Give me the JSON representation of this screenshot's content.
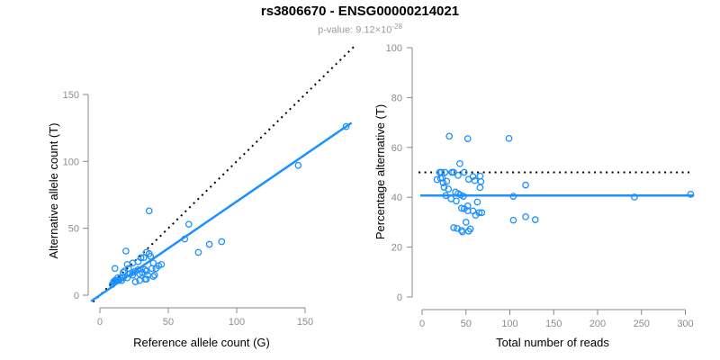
{
  "figure": {
    "title": "rs3806670 - ENSG00000214021",
    "p_value_label": "p-value: 9.12×10",
    "p_value_exponent": "-28"
  },
  "colors": {
    "accent": "#1E90FF",
    "axis": "#888888",
    "tick_label": "#8c8c8c",
    "title": "#000000",
    "subtitle": "#9c9c9c",
    "dotted_line": "#000000"
  },
  "chart_data": [
    {
      "type": "scatter",
      "name": "allele-counts-scatter",
      "xlabel": "Reference allele count (G)",
      "ylabel": "Alternative allele count (T)",
      "xticks": [
        0,
        50,
        100,
        150
      ],
      "yticks": [
        0,
        50,
        100,
        150
      ],
      "xlim": [
        -7,
        187
      ],
      "ylim": [
        -6,
        187
      ],
      "grid": false,
      "legend": "none",
      "marker": "open-circle",
      "lines": [
        {
          "name": "identity-line",
          "style": "dotted",
          "color": "#000000",
          "x1": -5,
          "y1": -5,
          "x2": 186,
          "y2": 186
        },
        {
          "name": "regression-line",
          "style": "solid",
          "color": "#1E90FF",
          "x1": -6.5,
          "y1": -4.55,
          "x2": 184,
          "y2": 128.8
        }
      ],
      "points": [
        [
          180,
          126
        ],
        [
          145,
          97
        ],
        [
          36,
          63
        ],
        [
          19,
          33
        ],
        [
          11,
          20
        ],
        [
          65,
          53
        ],
        [
          62,
          42
        ],
        [
          89,
          40
        ],
        [
          80,
          38
        ],
        [
          72,
          32
        ],
        [
          34,
          32
        ],
        [
          36,
          31
        ],
        [
          30,
          28
        ],
        [
          32,
          28
        ],
        [
          37,
          29
        ],
        [
          28,
          25
        ],
        [
          24,
          24
        ],
        [
          20,
          23
        ],
        [
          21,
          20
        ],
        [
          39,
          24
        ],
        [
          43,
          22
        ],
        [
          45,
          23
        ],
        [
          41,
          20
        ],
        [
          38,
          20
        ],
        [
          33,
          19
        ],
        [
          34,
          18
        ],
        [
          31,
          17
        ],
        [
          26,
          18
        ],
        [
          28,
          19
        ],
        [
          24,
          17
        ],
        [
          22,
          16
        ],
        [
          29,
          16
        ],
        [
          24,
          15
        ],
        [
          35,
          15
        ],
        [
          40,
          15
        ],
        [
          39,
          14
        ],
        [
          20,
          13
        ],
        [
          17,
          13
        ],
        [
          15,
          13
        ],
        [
          16,
          11
        ],
        [
          14,
          11
        ],
        [
          13,
          11
        ],
        [
          12,
          11
        ],
        [
          11,
          10
        ],
        [
          10,
          10
        ],
        [
          11,
          11
        ],
        [
          13,
          13
        ],
        [
          17,
          17
        ],
        [
          18,
          18
        ],
        [
          26,
          10
        ],
        [
          29,
          11
        ],
        [
          33,
          12
        ],
        [
          34,
          12
        ],
        [
          9,
          8
        ]
      ]
    },
    {
      "type": "scatter",
      "name": "percentage-vs-reads-scatter",
      "xlabel": "Total number of reads",
      "ylabel": "Percentage alternative (T)",
      "xticks": [
        0,
        50,
        100,
        150,
        200,
        250,
        300
      ],
      "yticks": [
        0,
        20,
        40,
        60,
        80,
        100
      ],
      "xlim": [
        -12,
        316
      ],
      "ylim": [
        0,
        100
      ],
      "grid": false,
      "legend": "none",
      "marker": "open-circle",
      "lines": [
        {
          "name": "fifty-percent-line",
          "style": "dotted",
          "color": "#000000",
          "x1": -4,
          "y1": 50,
          "x2": 307,
          "y2": 50
        },
        {
          "name": "mean-percentage-line",
          "style": "solid",
          "color": "#1E90FF",
          "x1": -2,
          "y1": 40.7,
          "x2": 310,
          "y2": 40.7
        }
      ],
      "points": [
        [
          306,
          41.2
        ],
        [
          242,
          40.1
        ],
        [
          99,
          63.6
        ],
        [
          52,
          63.5
        ],
        [
          31,
          64.5
        ],
        [
          118,
          44.9
        ],
        [
          104,
          40.4
        ],
        [
          129,
          31.0
        ],
        [
          118,
          32.2
        ],
        [
          104,
          30.8
        ],
        [
          66,
          48.5
        ],
        [
          67,
          46.3
        ],
        [
          58,
          48.3
        ],
        [
          60,
          46.7
        ],
        [
          66,
          43.9
        ],
        [
          53,
          47.2
        ],
        [
          48,
          50.0
        ],
        [
          43,
          53.5
        ],
        [
          41,
          48.8
        ],
        [
          63,
          38.1
        ],
        [
          65,
          33.8
        ],
        [
          68,
          33.8
        ],
        [
          61,
          32.8
        ],
        [
          58,
          34.5
        ],
        [
          52,
          36.5
        ],
        [
          52,
          34.6
        ],
        [
          48,
          35.4
        ],
        [
          44,
          40.9
        ],
        [
          47,
          40.4
        ],
        [
          41,
          41.5
        ],
        [
          38,
          42.1
        ],
        [
          45,
          35.6
        ],
        [
          39,
          38.5
        ],
        [
          50,
          30.0
        ],
        [
          55,
          27.3
        ],
        [
          53,
          26.4
        ],
        [
          33,
          39.4
        ],
        [
          30,
          43.3
        ],
        [
          28,
          46.4
        ],
        [
          27,
          40.7
        ],
        [
          25,
          44.0
        ],
        [
          24,
          45.8
        ],
        [
          23,
          47.8
        ],
        [
          21,
          47.6
        ],
        [
          20,
          50.0
        ],
        [
          22,
          50.0
        ],
        [
          26,
          50.0
        ],
        [
          34,
          50.0
        ],
        [
          36,
          50.0
        ],
        [
          36,
          27.8
        ],
        [
          40,
          27.5
        ],
        [
          45,
          26.7
        ],
        [
          46,
          26.1
        ],
        [
          17,
          47.1
        ]
      ]
    }
  ]
}
